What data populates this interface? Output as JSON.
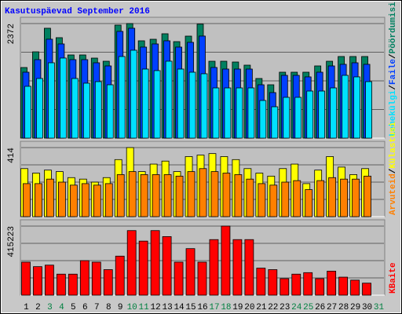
{
  "chart_data": [
    {
      "type": "bar",
      "title": "Kasutuspäevad September 2016",
      "legend_separator": "/",
      "ylim": [
        0,
        2372
      ],
      "yticks": [
        2372
      ],
      "series": [
        {
          "name": "Pöördumisi",
          "color": "#008060",
          "values": [
            1462,
            1787,
            2275,
            2080,
            1722,
            1722,
            1657,
            1592,
            2340,
            2372,
            2015,
            2047,
            2161,
            1998,
            2112,
            2360,
            1592,
            1592,
            1576,
            1511,
            1235,
            1105,
            1365,
            1365,
            1365,
            1495,
            1592,
            1690,
            1690,
            1690,
            null
          ]
        },
        {
          "name": "Faile",
          "color": "#0040ff",
          "values": [
            1365,
            1625,
            2048,
            1950,
            1625,
            1625,
            1560,
            1495,
            2210,
            2275,
            1885,
            1950,
            2015,
            1885,
            1983,
            2113,
            1463,
            1430,
            1430,
            1430,
            1105,
            943,
            1300,
            1300,
            1268,
            1365,
            1495,
            1528,
            1560,
            1528,
            null
          ]
        },
        {
          "name": "Lehekülgi",
          "color": "#00e0ff",
          "values": [
            1073,
            1235,
            1560,
            1658,
            1235,
            1138,
            1170,
            1105,
            1690,
            1820,
            1430,
            1398,
            1593,
            1430,
            1365,
            1333,
            1040,
            1040,
            1040,
            1040,
            780,
            650,
            845,
            845,
            975,
            975,
            1040,
            1300,
            1268,
            1170,
            null
          ]
        }
      ]
    },
    {
      "type": "bar",
      "legend_separator": "/",
      "ylim": [
        0,
        414
      ],
      "yticks": [
        414
      ],
      "series": [
        {
          "name": "Külastusi",
          "color": "#ffff00",
          "values": [
            288,
            261,
            279,
            270,
            234,
            225,
            207,
            234,
            342,
            414,
            270,
            315,
            333,
            270,
            360,
            369,
            378,
            360,
            342,
            288,
            261,
            243,
            288,
            315,
            198,
            279,
            360,
            297,
            252,
            288,
            null
          ]
        },
        {
          "name": "Arvuteid",
          "color": "#ff8000",
          "values": [
            198,
            198,
            225,
            207,
            189,
            198,
            189,
            198,
            252,
            270,
            252,
            252,
            252,
            243,
            270,
            288,
            270,
            261,
            252,
            225,
            198,
            189,
            207,
            216,
            162,
            216,
            234,
            225,
            225,
            243,
            null
          ]
        }
      ]
    },
    {
      "type": "bar",
      "ylim": [
        0,
        415223
      ],
      "yticks": [
        415223
      ],
      "categories": [
        "1",
        "2",
        "3",
        "4",
        "5",
        "6",
        "7",
        "8",
        "9",
        "10",
        "11",
        "12",
        "13",
        "14",
        "15",
        "16",
        "17",
        "18",
        "19",
        "20",
        "21",
        "22",
        "23",
        "24",
        "25",
        "26",
        "27",
        "28",
        "29",
        "30",
        "31"
      ],
      "category_colors": [
        "#000000",
        "#000000",
        "#008040",
        "#008040",
        "#000000",
        "#000000",
        "#000000",
        "#000000",
        "#000000",
        "#008040",
        "#008040",
        "#000000",
        "#000000",
        "#000000",
        "#000000",
        "#000000",
        "#008040",
        "#008040",
        "#000000",
        "#000000",
        "#000000",
        "#000000",
        "#000000",
        "#008040",
        "#008040",
        "#000000",
        "#000000",
        "#000000",
        "#000000",
        "#000000",
        "#008040"
      ],
      "series": [
        {
          "name": "KBaite",
          "color": "#ff0000",
          "values": [
            198572,
            171494,
            180520,
            126364,
            126364,
            207598,
            198572,
            153442,
            234676,
            388118,
            324936,
            388118,
            352014,
            198572,
            279806,
            198572,
            333962,
            415223,
            333962,
            333962,
            162468,
            153442,
            99286,
            126364,
            135390,
            99286,
            144416,
            108312,
            90260,
            72208,
            null
          ]
        }
      ]
    }
  ]
}
